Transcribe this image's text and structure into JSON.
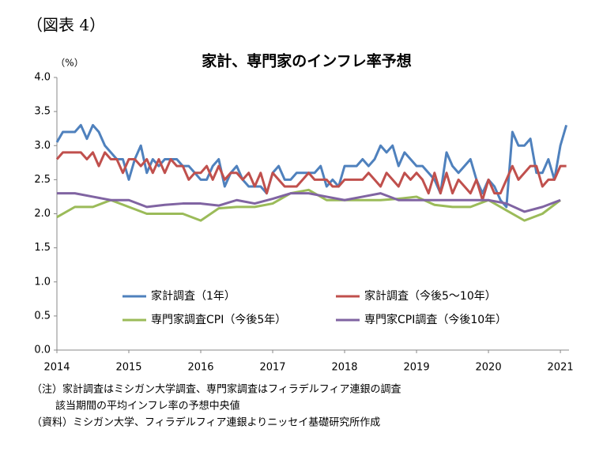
{
  "figure_label": "（図表 4）",
  "chart_data": {
    "type": "line",
    "title": "家計、専門家のインフレ率予想",
    "y_label": "（%）",
    "xlim": [
      2014,
      2021.12
    ],
    "xticks": [
      2014,
      2015,
      2016,
      2017,
      2018,
      2019,
      2020,
      2021
    ],
    "ylim": [
      0,
      4
    ],
    "yticks": [
      {
        "value": 0,
        "label": "0.0"
      },
      0.5,
      {
        "value": 1,
        "label": "1.0"
      },
      1.5,
      {
        "value": 2,
        "label": "2.0"
      },
      2.5,
      {
        "value": 3,
        "label": "3.0"
      },
      3.5,
      {
        "value": 4,
        "label": "4.0"
      }
    ],
    "grid": false,
    "legend": "bottom",
    "series": [
      {
        "name": "家計調査（1年）",
        "color": "#4f81bd",
        "x": [
          2014,
          2014.083,
          2014.167,
          2014.25,
          2014.333,
          2014.417,
          2014.5,
          2014.583,
          2014.667,
          2014.75,
          2014.833,
          2014.917,
          2015,
          2015.083,
          2015.167,
          2015.25,
          2015.333,
          2015.417,
          2015.5,
          2015.583,
          2015.667,
          2015.75,
          2015.833,
          2015.917,
          2016,
          2016.083,
          2016.167,
          2016.25,
          2016.333,
          2016.417,
          2016.5,
          2016.583,
          2016.667,
          2016.75,
          2016.833,
          2016.917,
          2017,
          2017.083,
          2017.167,
          2017.25,
          2017.333,
          2017.417,
          2017.5,
          2017.583,
          2017.667,
          2017.75,
          2017.833,
          2017.917,
          2018,
          2018.083,
          2018.167,
          2018.25,
          2018.333,
          2018.417,
          2018.5,
          2018.583,
          2018.667,
          2018.75,
          2018.833,
          2018.917,
          2019,
          2019.083,
          2019.167,
          2019.25,
          2019.333,
          2019.417,
          2019.5,
          2019.583,
          2019.667,
          2019.75,
          2019.833,
          2019.917,
          2020,
          2020.083,
          2020.167,
          2020.25,
          2020.333,
          2020.417,
          2020.5,
          2020.583,
          2020.667,
          2020.75,
          2020.833,
          2020.917,
          2021,
          2021.083
        ],
        "values": [
          3.05,
          3.2,
          3.2,
          3.2,
          3.3,
          3.1,
          3.3,
          3.2,
          3.0,
          2.9,
          2.8,
          2.8,
          2.5,
          2.8,
          3.0,
          2.6,
          2.8,
          2.7,
          2.8,
          2.8,
          2.8,
          2.7,
          2.7,
          2.6,
          2.5,
          2.5,
          2.7,
          2.8,
          2.4,
          2.6,
          2.7,
          2.5,
          2.4,
          2.4,
          2.4,
          2.3,
          2.6,
          2.7,
          2.5,
          2.5,
          2.6,
          2.6,
          2.6,
          2.6,
          2.7,
          2.4,
          2.5,
          2.4,
          2.7,
          2.7,
          2.7,
          2.8,
          2.7,
          2.8,
          3.0,
          2.9,
          3.0,
          2.7,
          2.9,
          2.8,
          2.7,
          2.7,
          2.6,
          2.5,
          2.3,
          2.9,
          2.7,
          2.6,
          2.7,
          2.8,
          2.5,
          2.3,
          2.5,
          2.4,
          2.2,
          2.1,
          3.2,
          3.0,
          3.0,
          3.1,
          2.6,
          2.6,
          2.8,
          2.5,
          3.0,
          3.3
        ]
      },
      {
        "name": "家計調査（今後5～10年）",
        "color": "#c0504d",
        "x": [
          2014,
          2014.083,
          2014.167,
          2014.25,
          2014.333,
          2014.417,
          2014.5,
          2014.583,
          2014.667,
          2014.75,
          2014.833,
          2014.917,
          2015,
          2015.083,
          2015.167,
          2015.25,
          2015.333,
          2015.417,
          2015.5,
          2015.583,
          2015.667,
          2015.75,
          2015.833,
          2015.917,
          2016,
          2016.083,
          2016.167,
          2016.25,
          2016.333,
          2016.417,
          2016.5,
          2016.583,
          2016.667,
          2016.75,
          2016.833,
          2016.917,
          2017,
          2017.083,
          2017.167,
          2017.25,
          2017.333,
          2017.417,
          2017.5,
          2017.583,
          2017.667,
          2017.75,
          2017.833,
          2017.917,
          2018,
          2018.083,
          2018.167,
          2018.25,
          2018.333,
          2018.417,
          2018.5,
          2018.583,
          2018.667,
          2018.75,
          2018.833,
          2018.917,
          2019,
          2019.083,
          2019.167,
          2019.25,
          2019.333,
          2019.417,
          2019.5,
          2019.583,
          2019.667,
          2019.75,
          2019.833,
          2019.917,
          2020,
          2020.083,
          2020.167,
          2020.25,
          2020.333,
          2020.417,
          2020.5,
          2020.583,
          2020.667,
          2020.75,
          2020.833,
          2020.917,
          2021,
          2021.083
        ],
        "values": [
          2.8,
          2.9,
          2.9,
          2.9,
          2.9,
          2.8,
          2.9,
          2.7,
          2.9,
          2.8,
          2.8,
          2.6,
          2.8,
          2.8,
          2.7,
          2.8,
          2.6,
          2.8,
          2.6,
          2.8,
          2.7,
          2.7,
          2.5,
          2.6,
          2.6,
          2.7,
          2.5,
          2.7,
          2.5,
          2.6,
          2.6,
          2.5,
          2.6,
          2.4,
          2.6,
          2.3,
          2.6,
          2.5,
          2.4,
          2.4,
          2.4,
          2.5,
          2.6,
          2.5,
          2.5,
          2.5,
          2.4,
          2.4,
          2.5,
          2.5,
          2.5,
          2.5,
          2.6,
          2.5,
          2.4,
          2.6,
          2.5,
          2.4,
          2.6,
          2.5,
          2.6,
          2.5,
          2.3,
          2.6,
          2.3,
          2.6,
          2.3,
          2.5,
          2.4,
          2.3,
          2.5,
          2.2,
          2.5,
          2.3,
          2.3,
          2.5,
          2.7,
          2.5,
          2.6,
          2.7,
          2.7,
          2.4,
          2.5,
          2.5,
          2.7,
          2.7
        ]
      },
      {
        "name": "専門家調査CPI（今後5年）",
        "color": "#9bbb59",
        "x": [
          2014,
          2014.25,
          2014.5,
          2014.75,
          2015,
          2015.25,
          2015.5,
          2015.75,
          2016,
          2016.25,
          2016.5,
          2016.75,
          2017,
          2017.25,
          2017.5,
          2017.75,
          2018,
          2018.25,
          2018.5,
          2018.75,
          2019,
          2019.25,
          2019.5,
          2019.75,
          2020,
          2020.25,
          2020.5,
          2020.75,
          2021
        ],
        "values": [
          1.95,
          2.1,
          2.1,
          2.2,
          2.1,
          2.0,
          2.0,
          2.0,
          1.9,
          2.08,
          2.1,
          2.1,
          2.15,
          2.3,
          2.35,
          2.2,
          2.2,
          2.2,
          2.2,
          2.22,
          2.25,
          2.13,
          2.1,
          2.1,
          2.2,
          2.05,
          1.9,
          2.0,
          2.2
        ]
      },
      {
        "name": "専門家CPI調査（今後10年）",
        "color": "#8064a2",
        "x": [
          2014,
          2014.25,
          2014.5,
          2014.75,
          2015,
          2015.25,
          2015.5,
          2015.75,
          2016,
          2016.25,
          2016.5,
          2016.75,
          2017,
          2017.25,
          2017.5,
          2017.75,
          2018,
          2018.25,
          2018.5,
          2018.75,
          2019,
          2019.25,
          2019.5,
          2019.75,
          2020,
          2020.25,
          2020.5,
          2020.75,
          2021
        ],
        "values": [
          2.3,
          2.3,
          2.25,
          2.2,
          2.2,
          2.1,
          2.13,
          2.15,
          2.15,
          2.12,
          2.2,
          2.15,
          2.22,
          2.3,
          2.3,
          2.25,
          2.2,
          2.25,
          2.3,
          2.2,
          2.2,
          2.2,
          2.2,
          2.2,
          2.2,
          2.15,
          2.03,
          2.1,
          2.2
        ]
      }
    ]
  },
  "notes": [
    "（注）家計調査はミシガン大学調査、専門家調査はフィラデルフィア連銀の調査",
    "該当期間の平均インフレ率の予想中央値",
    "（資料）ミシガン大学、フィラデルフィア連銀よりニッセイ基礎研究所作成"
  ]
}
